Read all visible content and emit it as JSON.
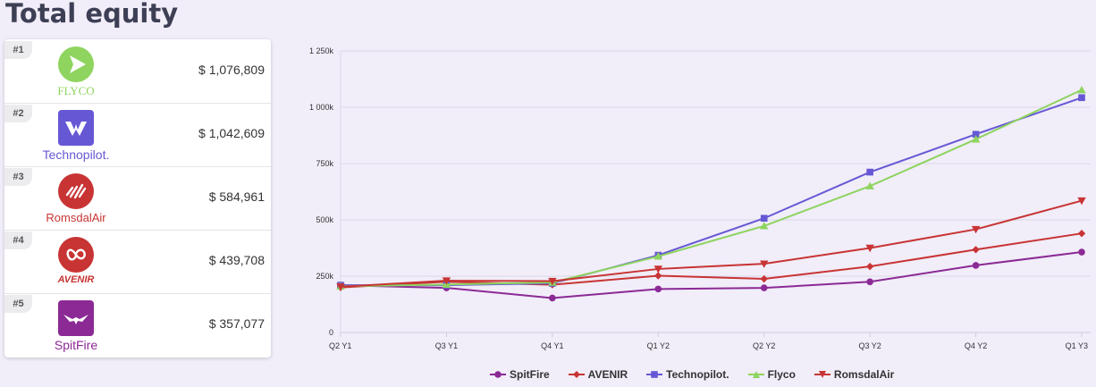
{
  "title": "Total equity",
  "ranking": [
    {
      "rank": "#1",
      "name": "FLYCO",
      "amount": "$ 1,076,809",
      "color": "#8ed45f",
      "icon": "play-arrow-icon"
    },
    {
      "rank": "#2",
      "name": "Technopilot.",
      "amount": "$ 1,042,609",
      "color": "#6658d4",
      "icon": "w-wing-icon"
    },
    {
      "rank": "#3",
      "name": "RomsdalAir",
      "amount": "$ 584,961",
      "color": "#c83434",
      "icon": "jet-stripes-icon"
    },
    {
      "rank": "#4",
      "name": "AVENIR",
      "amount": "$ 439,708",
      "color": "#c83434",
      "icon": "loop-plane-icon"
    },
    {
      "rank": "#5",
      "name": "SpitFire",
      "amount": "$ 357,077",
      "color": "#8b2a95",
      "icon": "eagle-icon"
    }
  ],
  "chart_data": {
    "type": "line",
    "categories": [
      "Q2 Y1",
      "Q3 Y1",
      "Q4 Y1",
      "Q1 Y2",
      "Q2 Y2",
      "Q3 Y2",
      "Q4 Y2",
      "Q1 Y3"
    ],
    "ylim": [
      0,
      1250000
    ],
    "yticks": [
      0,
      250000,
      500000,
      750000,
      1000000,
      1250000
    ],
    "ytick_labels": [
      "0",
      "250k",
      "500k",
      "750k",
      "1 000k",
      "1 250k"
    ],
    "grid": true,
    "legend_position": "bottom",
    "series": [
      {
        "name": "SpitFire",
        "color": "#8b2a95",
        "marker": "circle",
        "values": [
          210000,
          198000,
          153000,
          193000,
          198000,
          225000,
          298000,
          357077
        ]
      },
      {
        "name": "AVENIR",
        "color": "#c83434",
        "marker": "diamond",
        "values": [
          200000,
          225000,
          212000,
          252000,
          238000,
          293000,
          368000,
          439708
        ]
      },
      {
        "name": "Technopilot.",
        "color": "#6658d4",
        "marker": "square",
        "values": [
          210000,
          210000,
          218000,
          343000,
          507000,
          712000,
          880000,
          1042609
        ]
      },
      {
        "name": "Flyco",
        "color": "#8ed45f",
        "marker": "triangle",
        "values": [
          205000,
          213000,
          222000,
          338000,
          473000,
          650000,
          858000,
          1076809
        ]
      },
      {
        "name": "RomsdalAir",
        "color": "#c83434",
        "marker": "triangle-down",
        "values": [
          203000,
          230000,
          228000,
          282000,
          305000,
          375000,
          458000,
          584961
        ]
      }
    ]
  }
}
